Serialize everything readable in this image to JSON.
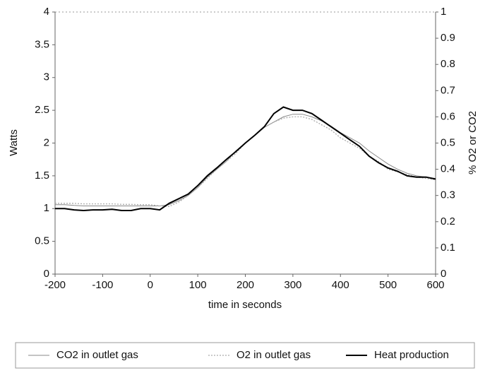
{
  "chart_data": {
    "type": "line",
    "xlabel": "time in seconds",
    "ylabel": "Watts",
    "y2label": "% O2 or CO2",
    "x": [
      -200,
      -180,
      -160,
      -140,
      -120,
      -100,
      -80,
      -60,
      -40,
      -20,
      0,
      20,
      40,
      60,
      80,
      100,
      120,
      140,
      160,
      180,
      200,
      220,
      240,
      260,
      280,
      300,
      320,
      340,
      360,
      380,
      400,
      420,
      440,
      460,
      480,
      500,
      520,
      540,
      560,
      580,
      600
    ],
    "series": [
      {
        "name": "CO2 in outlet gas",
        "color": "#888888",
        "style": "solid",
        "axis": "y2",
        "values": [
          0.265,
          0.265,
          0.262,
          0.26,
          0.26,
          0.26,
          0.26,
          0.26,
          0.26,
          0.26,
          0.26,
          0.26,
          0.265,
          0.28,
          0.3,
          0.33,
          0.37,
          0.4,
          0.43,
          0.47,
          0.5,
          0.53,
          0.56,
          0.58,
          0.6,
          0.61,
          0.61,
          0.6,
          0.585,
          0.565,
          0.54,
          0.52,
          0.5,
          0.47,
          0.445,
          0.42,
          0.4,
          0.385,
          0.375,
          0.37,
          0.365
        ]
      },
      {
        "name": "O2 in outlet gas",
        "color": "#aaaaaa",
        "style": "dotted",
        "axis": "y2",
        "values": [
          0.27,
          0.27,
          0.27,
          0.268,
          0.268,
          0.268,
          0.268,
          0.266,
          0.266,
          0.265,
          0.265,
          0.26,
          0.258,
          0.275,
          0.3,
          0.33,
          0.365,
          0.4,
          0.43,
          0.46,
          0.5,
          0.53,
          0.56,
          0.58,
          0.595,
          0.6,
          0.6,
          0.59,
          0.57,
          0.55,
          0.52,
          0.5,
          0.48,
          0.45,
          0.43,
          0.4,
          0.39,
          0.38,
          0.37,
          0.365,
          0.36
        ]
      },
      {
        "name": "Heat production",
        "color": "#000000",
        "style": "bold",
        "values": [
          1.0,
          1.0,
          0.98,
          0.97,
          0.98,
          0.98,
          0.99,
          0.97,
          0.97,
          1.0,
          1.0,
          0.98,
          1.08,
          1.15,
          1.22,
          1.35,
          1.5,
          1.62,
          1.75,
          1.87,
          2.0,
          2.12,
          2.25,
          2.45,
          2.55,
          2.5,
          2.5,
          2.45,
          2.35,
          2.25,
          2.15,
          2.05,
          1.95,
          1.8,
          1.7,
          1.62,
          1.57,
          1.5,
          1.48,
          1.48,
          1.45
        ]
      }
    ],
    "xlim": [
      -200,
      600
    ],
    "xticks": [
      -200,
      -100,
      0,
      100,
      200,
      300,
      400,
      500,
      600
    ],
    "ylim": [
      0,
      4
    ],
    "yticks": [
      0,
      0.5,
      1,
      1.5,
      2,
      2.5,
      3,
      3.5,
      4
    ],
    "y2lim": [
      0,
      1
    ],
    "y2ticks": [
      0,
      0.1,
      0.2,
      0.3,
      0.4,
      0.5,
      0.6,
      0.7,
      0.8,
      0.9,
      1
    ],
    "legend": "bottom"
  }
}
